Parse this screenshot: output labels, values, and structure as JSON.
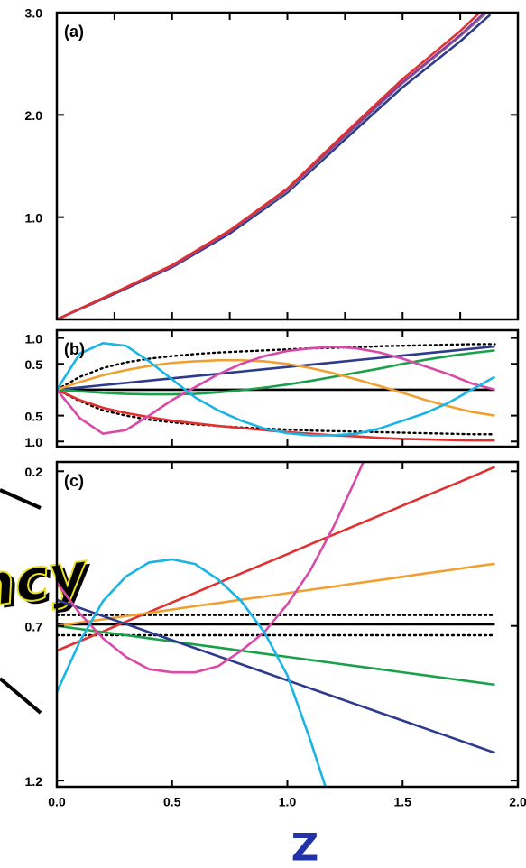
{
  "chart_data": [
    {
      "type": "line",
      "panel_label": "(a)",
      "x": [
        0,
        0.25,
        0.5,
        0.75,
        1.0,
        1.25,
        1.5,
        1.75,
        1.88
      ],
      "series": [
        {
          "color": "#2e3a8c",
          "values": [
            0,
            0.25,
            0.51,
            0.84,
            1.24,
            1.76,
            2.27,
            2.72,
            2.98
          ]
        },
        {
          "color": "#888888",
          "values": [
            0,
            0.26,
            0.52,
            0.86,
            1.26,
            1.79,
            2.31,
            2.77,
            3.03
          ]
        },
        {
          "color": "#8a3fa0",
          "values": [
            0,
            0.26,
            0.52,
            0.86,
            1.27,
            1.8,
            2.32,
            2.78,
            3.05
          ]
        },
        {
          "color": "#e03030",
          "values": [
            0,
            0.26,
            0.53,
            0.87,
            1.28,
            1.82,
            2.35,
            2.82,
            3.1
          ]
        }
      ],
      "xlim": [
        0,
        2
      ],
      "xticks": [
        0.25,
        0.5,
        0.75,
        1,
        1.25,
        1.5,
        1.75
      ],
      "ylim": [
        0,
        3.0
      ],
      "yticks": [
        {
          "value": 1,
          "label": "1.0"
        },
        {
          "value": 2,
          "label": "2.0"
        },
        {
          "value": 3,
          "label": "3.0"
        }
      ]
    },
    {
      "type": "line",
      "panel_label": "(b)",
      "x": [
        0,
        0.1,
        0.2,
        0.3,
        0.4,
        0.5,
        0.6,
        0.7,
        0.8,
        0.9,
        1.0,
        1.1,
        1.2,
        1.3,
        1.4,
        1.5,
        1.6,
        1.7,
        1.8,
        1.9
      ],
      "series": [
        {
          "color": "#000000",
          "values": [
            0,
            0,
            0,
            0,
            0,
            0,
            0,
            0,
            0,
            0,
            0,
            0,
            0,
            0,
            0,
            0,
            0,
            0,
            0,
            0
          ]
        },
        {
          "color": "#000000",
          "dotted": true,
          "values": [
            0,
            0.25,
            0.42,
            0.53,
            0.6,
            0.65,
            0.69,
            0.72,
            0.74,
            0.76,
            0.78,
            0.8,
            0.81,
            0.82,
            0.84,
            0.85,
            0.86,
            0.87,
            0.88,
            0.88
          ]
        },
        {
          "color": "#000000",
          "dotted": true,
          "values": [
            0,
            -0.22,
            -0.4,
            -0.5,
            -0.58,
            -0.63,
            -0.67,
            -0.7,
            -0.73,
            -0.75,
            -0.77,
            -0.79,
            -0.8,
            -0.81,
            -0.82,
            -0.83,
            -0.84,
            -0.85,
            -0.86,
            -0.86
          ]
        },
        {
          "color": "#e03030",
          "values": [
            0,
            -0.2,
            -0.35,
            -0.45,
            -0.53,
            -0.6,
            -0.65,
            -0.7,
            -0.74,
            -0.78,
            -0.82,
            -0.85,
            -0.88,
            -0.9,
            -0.93,
            -0.95,
            -0.96,
            -0.97,
            -0.98,
            -0.98
          ]
        },
        {
          "color": "#2e3a8c",
          "values": [
            0,
            0.044,
            0.088,
            0.132,
            0.176,
            0.22,
            0.264,
            0.308,
            0.352,
            0.396,
            0.44,
            0.484,
            0.528,
            0.572,
            0.616,
            0.66,
            0.704,
            0.748,
            0.792,
            0.836
          ]
        },
        {
          "color": "#1aa04a",
          "values": [
            0,
            -0.03,
            -0.06,
            -0.08,
            -0.09,
            -0.09,
            -0.08,
            -0.05,
            -0.01,
            0.04,
            0.1,
            0.17,
            0.25,
            0.33,
            0.41,
            0.5,
            0.58,
            0.65,
            0.71,
            0.76
          ]
        },
        {
          "color": "#f0a030",
          "values": [
            0,
            0.15,
            0.28,
            0.38,
            0.46,
            0.52,
            0.55,
            0.57,
            0.57,
            0.55,
            0.5,
            0.42,
            0.32,
            0.2,
            0.07,
            -0.06,
            -0.2,
            -0.32,
            -0.43,
            -0.5
          ]
        },
        {
          "color": "#d94aa8",
          "values": [
            0,
            -0.55,
            -0.85,
            -0.78,
            -0.5,
            -0.2,
            0.05,
            0.3,
            0.5,
            0.65,
            0.75,
            0.8,
            0.83,
            0.8,
            0.72,
            0.6,
            0.45,
            0.3,
            0.12,
            0.0
          ]
        },
        {
          "color": "#19b4e6",
          "values": [
            0,
            0.7,
            0.9,
            0.85,
            0.55,
            0.2,
            -0.15,
            -0.4,
            -0.6,
            -0.75,
            -0.84,
            -0.88,
            -0.88,
            -0.85,
            -0.75,
            -0.6,
            -0.45,
            -0.25,
            0,
            0.25
          ]
        }
      ],
      "xlim": [
        0,
        2
      ],
      "xticks": [
        0.5,
        1,
        1.5
      ],
      "ylim": [
        -1.1,
        1.15
      ],
      "yticks": [
        {
          "value": 1,
          "label": "1.0"
        },
        0.5,
        {
          "value": -0.5,
          "label": "0.5"
        },
        {
          "value": -1,
          "label": "1.0"
        }
      ]
    },
    {
      "type": "line",
      "panel_label": "(c)",
      "y_inverted": true,
      "x": [
        0,
        0.1,
        0.2,
        0.3,
        0.4,
        0.5,
        0.6,
        0.7,
        0.8,
        0.9,
        1.0,
        1.1,
        1.2,
        1.3,
        1.4,
        1.5,
        1.6,
        1.7,
        1.8,
        1.9
      ],
      "series": [
        {
          "color": "#000000",
          "values": [
            0.695,
            0.695,
            0.695,
            0.695,
            0.695,
            0.695,
            0.695,
            0.695,
            0.695,
            0.695,
            0.695,
            0.695,
            0.695,
            0.695,
            0.695,
            0.695,
            0.695,
            0.695,
            0.695,
            0.695
          ]
        },
        {
          "color": "#000000",
          "dotted": true,
          "values": [
            0.665,
            0.665,
            0.665,
            0.665,
            0.665,
            0.665,
            0.665,
            0.665,
            0.665,
            0.665,
            0.665,
            0.665,
            0.665,
            0.665,
            0.665,
            0.665,
            0.665,
            0.665,
            0.665,
            0.665
          ]
        },
        {
          "color": "#000000",
          "dotted": true,
          "values": [
            0.73,
            0.73,
            0.73,
            0.73,
            0.73,
            0.73,
            0.73,
            0.73,
            0.73,
            0.73,
            0.73,
            0.73,
            0.73,
            0.73,
            0.73,
            0.73,
            0.73,
            0.73,
            0.73,
            0.73
          ]
        },
        {
          "color": "#e03030",
          "values": [
            0.78,
            0.749,
            0.718,
            0.686,
            0.655,
            0.624,
            0.593,
            0.561,
            0.53,
            0.499,
            0.468,
            0.436,
            0.405,
            0.374,
            0.343,
            0.311,
            0.28,
            0.249,
            0.218,
            0.186
          ]
        },
        {
          "color": "#f0a030",
          "values": [
            0.7,
            0.689,
            0.679,
            0.668,
            0.658,
            0.647,
            0.636,
            0.626,
            0.615,
            0.605,
            0.594,
            0.583,
            0.573,
            0.562,
            0.552,
            0.541,
            0.53,
            0.52,
            0.509,
            0.499
          ]
        },
        {
          "color": "#1aa04a",
          "values": [
            0.7,
            0.71,
            0.72,
            0.73,
            0.74,
            0.75,
            0.76,
            0.77,
            0.78,
            0.79,
            0.8,
            0.81,
            0.82,
            0.83,
            0.84,
            0.85,
            0.86,
            0.87,
            0.88,
            0.89
          ]
        },
        {
          "color": "#2e3a8c",
          "values": [
            0.616,
            0.642,
            0.668,
            0.694,
            0.72,
            0.746,
            0.772,
            0.798,
            0.824,
            0.85,
            0.876,
            0.902,
            0.928,
            0.954,
            0.98,
            1.006,
            1.032,
            1.058,
            1.084,
            1.11
          ]
        },
        {
          "color": "#d94aa8",
          "values": [
            0.56,
            0.66,
            0.74,
            0.8,
            0.84,
            0.85,
            0.85,
            0.83,
            0.78,
            0.72,
            0.63,
            0.52,
            0.38,
            0.22,
            0.05,
            null,
            null,
            null,
            null,
            null
          ]
        },
        {
          "color": "#19b4e6",
          "values": [
            0.914,
            0.75,
            0.62,
            0.54,
            0.495,
            0.485,
            0.5,
            0.55,
            0.62,
            0.72,
            0.86,
            1.07,
            1.3,
            null,
            null,
            null,
            null,
            null,
            null,
            null
          ]
        }
      ],
      "xlim": [
        0,
        2
      ],
      "xticks": [
        {
          "value": 0,
          "label": "0.0"
        },
        0.5,
        {
          "value": 1,
          "label": "1.0"
        },
        1.5,
        {
          "value": 2,
          "label": "2.0"
        }
      ],
      "ylim": [
        0.17,
        1.22
      ],
      "yticks": [
        0.2,
        0.7,
        1.2
      ]
    }
  ],
  "overlay_text": "ncy",
  "axis_symbol": "Z"
}
